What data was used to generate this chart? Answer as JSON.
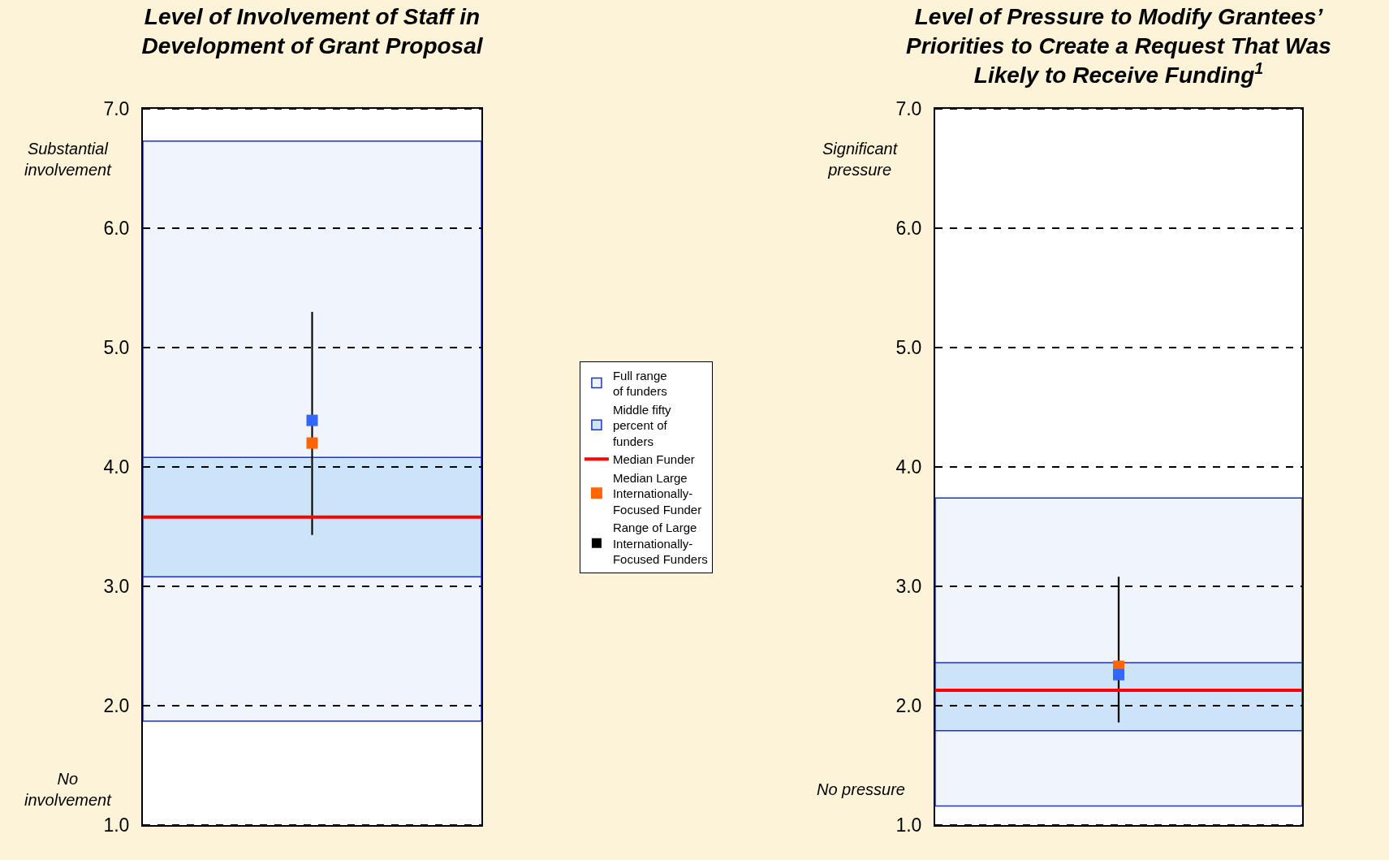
{
  "chart_data": [
    {
      "type": "bar",
      "title": "Level of Involvement of Staff in\nDevelopment of Grant Proposal",
      "categories": [
        null
      ],
      "ylim": [
        1,
        7
      ],
      "yticks": [
        {
          "value": 1,
          "label": "1.0"
        },
        {
          "value": 2,
          "label": "2.0"
        },
        {
          "value": 3,
          "label": "3.0"
        },
        {
          "value": 4,
          "label": "4.0"
        },
        {
          "value": 5,
          "label": "5.0"
        },
        {
          "value": 6,
          "label": "6.0"
        },
        {
          "value": 7,
          "label": "7.0"
        }
      ],
      "grid": "y",
      "legend": "right",
      "marker": "square",
      "annotations": [
        "Substantial\ninvolvement",
        "No\ninvolvement"
      ],
      "ref_lines": [
        {
          "axis": "y",
          "value": 3.58,
          "label": "Median Funder",
          "color": "#ff0000"
        }
      ],
      "series": [
        {
          "name": "Full range\nof funders",
          "color": "#f0f5fd",
          "base": [
            1.87
          ],
          "values": [
            4.86
          ]
        },
        {
          "name": "Middle fifty\npercent of\nfunders",
          "color": "#cce4fa",
          "base": [
            3.08
          ],
          "values": [
            1.0
          ]
        },
        {
          "name": "Median Large\nInternationally-\nFocused Funder",
          "type": "scatter",
          "color": "#ff6600",
          "values": [
            4.2
          ]
        },
        {
          "name": "Range of Large\nInternationally-\nFocused Funders",
          "type": "bar",
          "color": "#000000",
          "base": [
            3.43
          ],
          "values": [
            1.87
          ]
        },
        {
          "type": "scatter",
          "color": "#3366ff",
          "values": [
            4.39
          ]
        }
      ]
    },
    {
      "type": "bar",
      "title": "Level of Pressure to Modify Grantees’\nPriorities to Create a Request That Was\nLikely to Receive Funding$^{1}$",
      "categories": [
        null
      ],
      "ylim": [
        1,
        7
      ],
      "yticks": [
        {
          "value": 1,
          "label": "1.0"
        },
        {
          "value": 2,
          "label": "2.0"
        },
        {
          "value": 3,
          "label": "3.0"
        },
        {
          "value": 4,
          "label": "4.0"
        },
        {
          "value": 5,
          "label": "5.0"
        },
        {
          "value": 6,
          "label": "6.0"
        },
        {
          "value": 7,
          "label": "7.0"
        }
      ],
      "grid": "y",
      "marker": "square",
      "annotations": [
        "Significant\npressure",
        "No pressure"
      ],
      "ref_lines": [
        {
          "axis": "y",
          "value": 2.13,
          "color": "#ff0000"
        }
      ],
      "series": [
        {
          "color": "#f0f5fd",
          "base": [
            1.16
          ],
          "values": [
            2.58
          ]
        },
        {
          "color": "#cce4fa",
          "base": [
            1.79
          ],
          "values": [
            0.57
          ]
        },
        {
          "type": "scatter",
          "color": "#ff6600",
          "values": [
            2.33
          ]
        },
        {
          "type": "bar",
          "color": "#000000",
          "base": [
            1.86
          ],
          "values": [
            1.22
          ]
        },
        {
          "type": "scatter",
          "color": "#3366ff",
          "values": [
            2.26
          ]
        }
      ]
    }
  ]
}
